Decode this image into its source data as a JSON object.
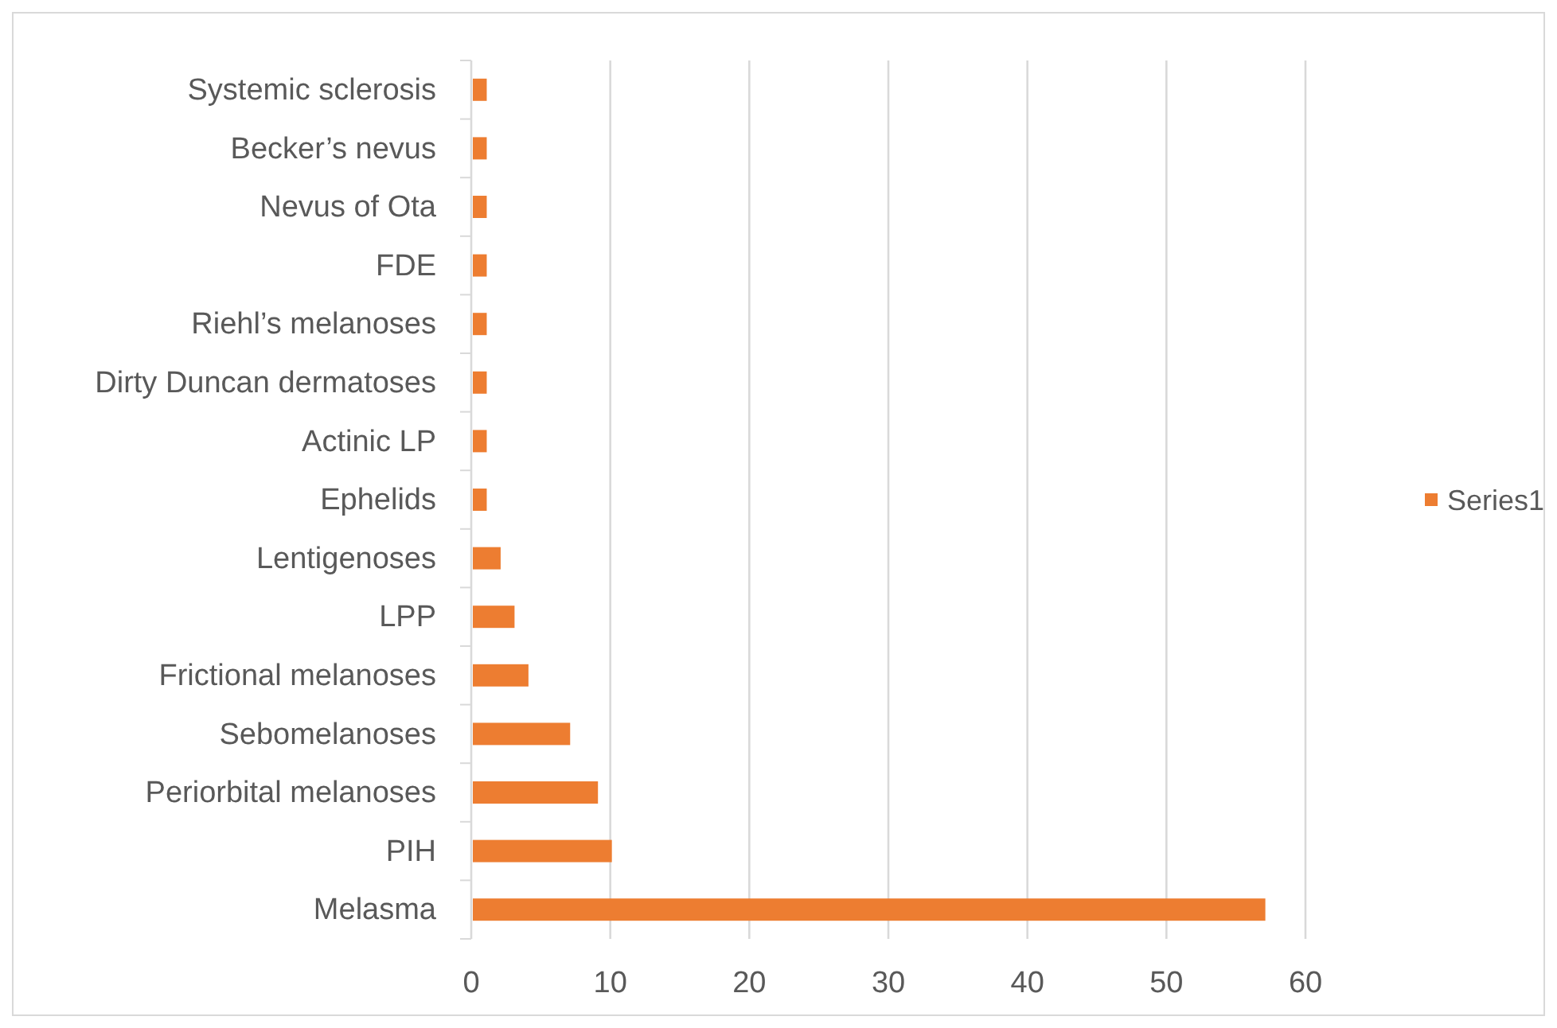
{
  "chart_data": {
    "type": "bar",
    "orientation": "horizontal",
    "categories": [
      "Systemic sclerosis",
      "Becker’s nevus",
      "Nevus of Ota",
      "FDE",
      "Riehl’s melanoses",
      "Dirty Duncan dermatoses",
      "Actinic LP",
      "Ephelids",
      "Lentigenoses",
      "LPP",
      "Frictional melanoses",
      "Sebomelanoses",
      "Periorbital melanoses",
      "PIH",
      "Melasma"
    ],
    "series": [
      {
        "name": "Series1",
        "color": "#ed7d31",
        "values": [
          1,
          1,
          1,
          1,
          1,
          1,
          1,
          1,
          2,
          3,
          4,
          7,
          9,
          10,
          57
        ]
      }
    ],
    "xlim": [
      0,
      60
    ],
    "xticks": [
      0,
      10,
      20,
      30,
      40,
      50,
      60
    ],
    "grid": "x",
    "legend": "right"
  }
}
